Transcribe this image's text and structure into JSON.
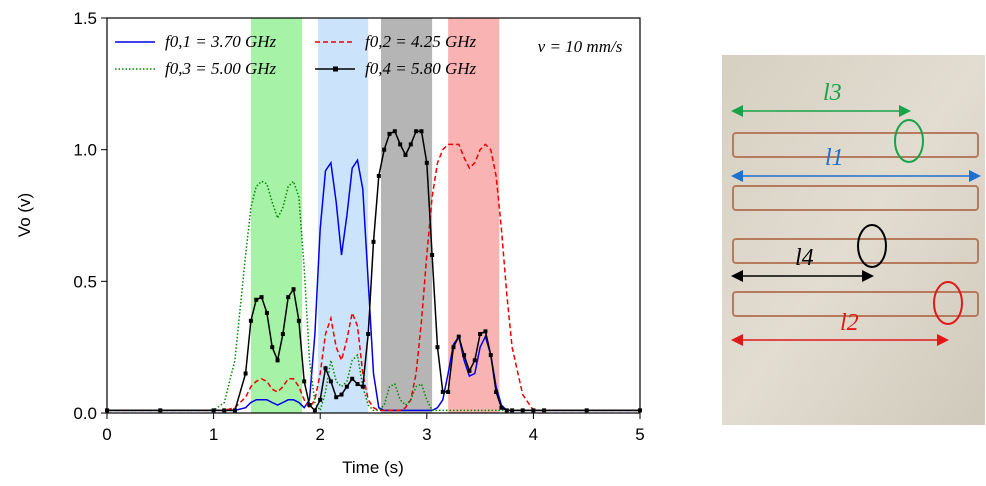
{
  "chart_data": {
    "type": "line",
    "x_label": "Time (s)",
    "y_label": "Vo (v)",
    "annotation": "v = 10 mm/s",
    "xlim": [
      0,
      5
    ],
    "ylim": [
      0,
      1.5
    ],
    "xticks": [
      0,
      1,
      2,
      3,
      4,
      5
    ],
    "yticks": [
      {
        "value": 0,
        "label": "0.0"
      },
      0.5,
      {
        "value": 1,
        "label": "1.0"
      },
      1.5
    ],
    "shaded_regions": [
      {
        "range": [
          1.35,
          1.83
        ],
        "color": "#a6f2a6"
      },
      {
        "range": [
          1.98,
          2.45
        ],
        "color": "#cce4fb"
      },
      {
        "range": [
          2.57,
          3.05
        ],
        "color": "#b5b5b5"
      },
      {
        "range": [
          3.2,
          3.68
        ],
        "color": "#f9b3b3"
      }
    ],
    "x": [
      0,
      0.5,
      1.0,
      1.1,
      1.2,
      1.3,
      1.35,
      1.4,
      1.45,
      1.5,
      1.55,
      1.6,
      1.65,
      1.7,
      1.75,
      1.8,
      1.85,
      1.9,
      1.95,
      2.0,
      2.05,
      2.1,
      2.15,
      2.2,
      2.25,
      2.3,
      2.35,
      2.4,
      2.45,
      2.5,
      2.55,
      2.6,
      2.65,
      2.7,
      2.75,
      2.8,
      2.85,
      2.9,
      2.95,
      3.0,
      3.05,
      3.1,
      3.15,
      3.2,
      3.25,
      3.3,
      3.35,
      3.4,
      3.45,
      3.5,
      3.55,
      3.6,
      3.65,
      3.7,
      3.75,
      3.8,
      3.9,
      4.0,
      4.1,
      4.5,
      5.0
    ],
    "series": [
      {
        "name": "f0,1 = 3.70 GHz",
        "color": "#0000ee",
        "dash": "solid",
        "values": [
          0.01,
          0.01,
          0.01,
          0.01,
          0.01,
          0.02,
          0.04,
          0.05,
          0.05,
          0.05,
          0.04,
          0.03,
          0.04,
          0.05,
          0.05,
          0.04,
          0.02,
          0.05,
          0.3,
          0.7,
          0.92,
          0.95,
          0.8,
          0.6,
          0.75,
          0.93,
          0.96,
          0.85,
          0.5,
          0.15,
          0.02,
          0.01,
          0.01,
          0.01,
          0.01,
          0.01,
          0.01,
          0.01,
          0.01,
          0.01,
          0.01,
          0.02,
          0.05,
          0.15,
          0.26,
          0.29,
          0.2,
          0.14,
          0.15,
          0.25,
          0.29,
          0.22,
          0.1,
          0.03,
          0.01,
          0.01,
          0.01,
          0.01,
          0.01,
          0.01,
          0.01
        ]
      },
      {
        "name": "f0,2 = 4.25 GHz",
        "color": "#ee0000",
        "dash": "dashed",
        "values": [
          0.01,
          0.01,
          0.01,
          0.01,
          0.02,
          0.06,
          0.1,
          0.12,
          0.13,
          0.12,
          0.09,
          0.08,
          0.1,
          0.13,
          0.13,
          0.1,
          0.05,
          0.02,
          0.05,
          0.15,
          0.3,
          0.36,
          0.25,
          0.2,
          0.28,
          0.38,
          0.33,
          0.15,
          0.05,
          0.02,
          0.01,
          0.01,
          0.01,
          0.01,
          0.01,
          0.02,
          0.05,
          0.15,
          0.35,
          0.6,
          0.82,
          0.95,
          1.0,
          1.02,
          1.02,
          1.02,
          0.97,
          0.93,
          0.95,
          1.0,
          1.02,
          1.0,
          0.9,
          0.7,
          0.45,
          0.25,
          0.07,
          0.01,
          0.01,
          0.01,
          0.01
        ]
      },
      {
        "name": "f0,3 = 5.00 GHz",
        "color": "#008800",
        "dash": "dotted",
        "values": [
          0.01,
          0.01,
          0.01,
          0.04,
          0.2,
          0.6,
          0.78,
          0.86,
          0.88,
          0.87,
          0.8,
          0.74,
          0.78,
          0.86,
          0.88,
          0.82,
          0.55,
          0.2,
          0.04,
          0.01,
          0.08,
          0.2,
          0.12,
          0.1,
          0.12,
          0.2,
          0.22,
          0.1,
          0.03,
          0.01,
          0.01,
          0.03,
          0.1,
          0.11,
          0.05,
          0.03,
          0.05,
          0.1,
          0.11,
          0.05,
          0.01,
          0.01,
          0.01,
          0.01,
          0.01,
          0.01,
          0.01,
          0.01,
          0.01,
          0.01,
          0.01,
          0.01,
          0.01,
          0.01,
          0.01,
          0.01,
          0.01,
          0.01,
          0.01,
          0.01,
          0.01
        ]
      },
      {
        "name": "f0,4 = 5.80 GHz",
        "color": "#000000",
        "dash": "solid",
        "marker": "square",
        "values": [
          0.01,
          0.01,
          0.01,
          0.01,
          0.01,
          0.15,
          0.35,
          0.43,
          0.44,
          0.38,
          0.25,
          0.2,
          0.3,
          0.44,
          0.47,
          0.35,
          0.12,
          0.03,
          0.01,
          0.05,
          0.17,
          0.12,
          0.06,
          0.07,
          0.1,
          0.13,
          0.11,
          0.1,
          0.3,
          0.65,
          0.9,
          1.0,
          1.06,
          1.07,
          1.02,
          0.98,
          1.02,
          1.07,
          1.07,
          0.95,
          0.6,
          0.25,
          0.08,
          0.08,
          0.25,
          0.29,
          0.22,
          0.16,
          0.2,
          0.3,
          0.31,
          0.22,
          0.08,
          0.02,
          0.01,
          0.01,
          0.01,
          0.01,
          0.01,
          0.01,
          0.01
        ]
      }
    ]
  },
  "photo": {
    "labels": [
      "l3",
      "l1",
      "l4",
      "l2"
    ]
  }
}
